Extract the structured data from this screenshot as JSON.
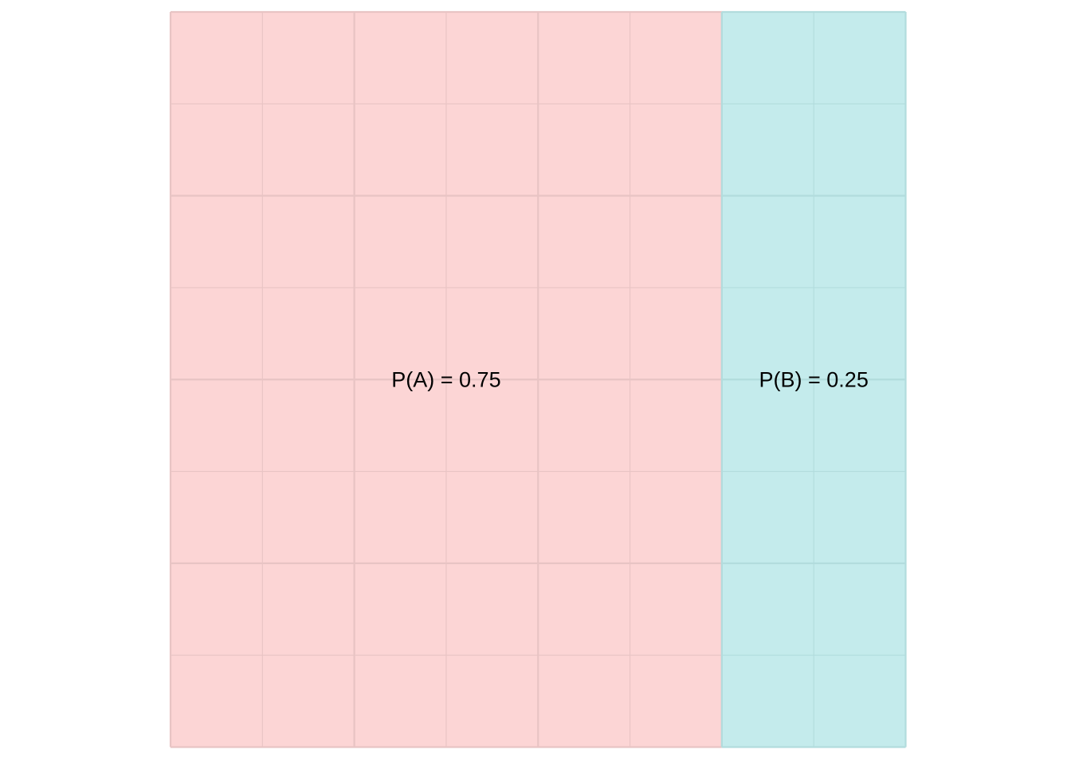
{
  "chart_data": {
    "type": "area",
    "title": "",
    "xlabel": "",
    "ylabel": "",
    "grid": true,
    "legend": "none",
    "axes_visible": false,
    "xlim": [
      0,
      1
    ],
    "ylim": [
      0,
      1
    ],
    "regions": [
      {
        "key": "A",
        "label": "P(A) = 0.75",
        "proportion": 0.75,
        "color": "#FCD5D5",
        "line_color": "#E8C4C4"
      },
      {
        "key": "B",
        "label": "P(B) = 0.25",
        "proportion": 0.25,
        "color": "#C4EBEC",
        "line_color": "#B2DCDD"
      }
    ],
    "grid_divisions": {
      "columns": 8,
      "rows": 8
    },
    "major_grid_every": 2
  }
}
